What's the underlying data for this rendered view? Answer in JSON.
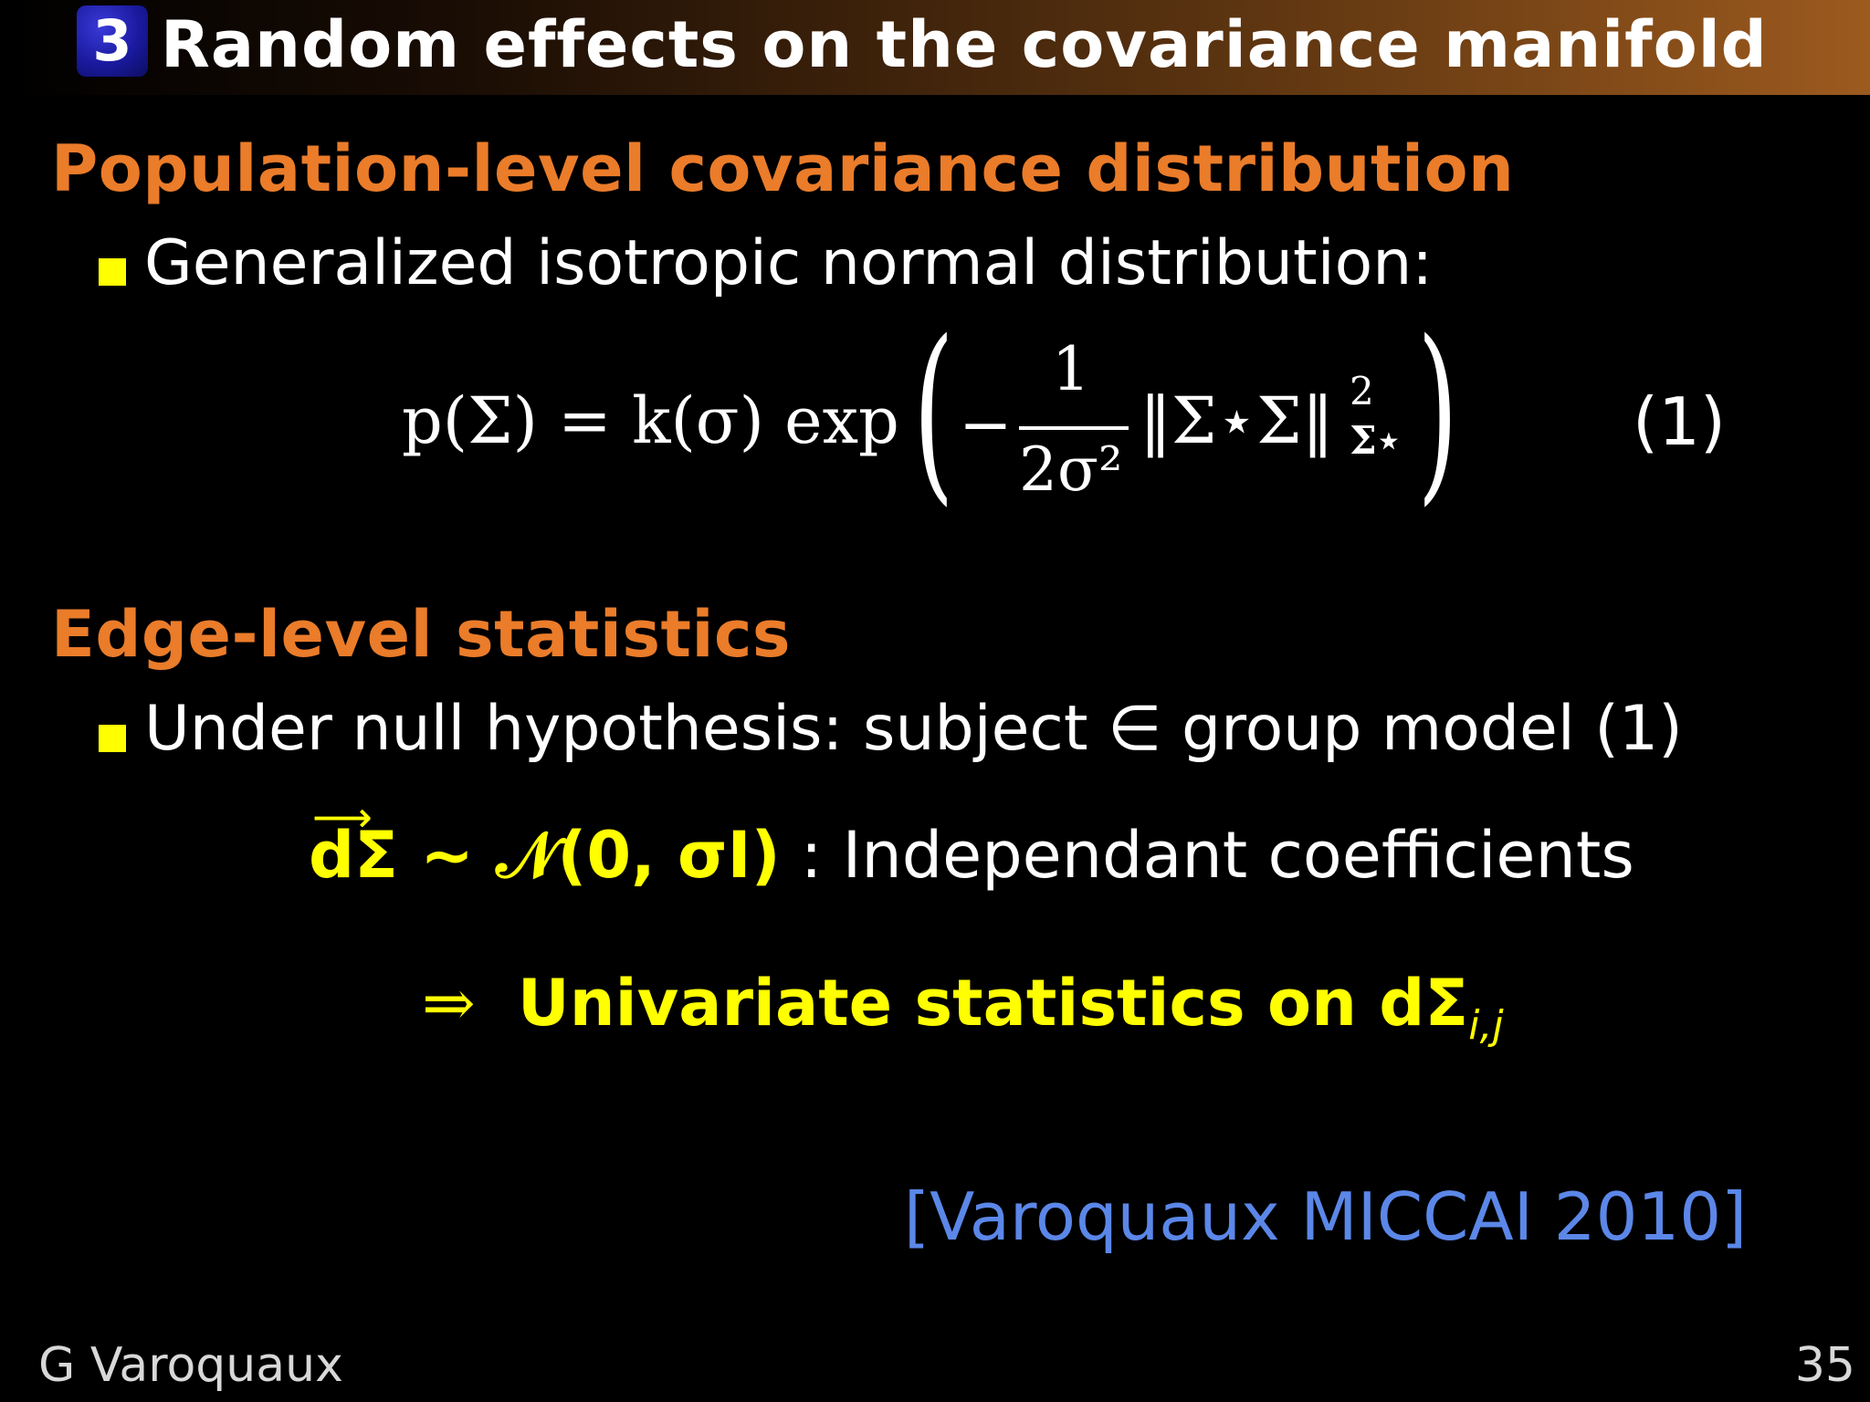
{
  "header": {
    "section_number": "3",
    "title": "Random effects on the covariance manifold"
  },
  "section1": {
    "heading": "Population-level covariance distribution",
    "bullet": "Generalized isotropic normal distribution:",
    "equation": {
      "lhs": "p(Σ) = k(σ) exp",
      "numerator": "1",
      "denominator": "2σ²",
      "norm": "‖Σ⋆Σ‖",
      "superscript": "2",
      "subscript": "Σ⋆",
      "number": "(1)"
    }
  },
  "section2": {
    "heading": "Edge-level statistics",
    "bullet": "Under null hypothesis: subject ∈ group model (1)",
    "distribution_formula": "dΣ ∼ 𝒩(0, σI)",
    "distribution_text": " : Independant coefficients",
    "conclusion_arrow": "⇒",
    "conclusion_text": "Univariate statistics on dΣ",
    "conclusion_subscript": "i,j"
  },
  "citation": "[Varoquaux MICCAI 2010]",
  "footer": {
    "author": "G Varoquaux",
    "page_number": "35"
  },
  "colors": {
    "heading": "#ea7c2a",
    "bullet": "#ffff00",
    "highlight": "#ffff00",
    "citation": "#5b87e8",
    "section_badge": "#1a1aa0"
  }
}
